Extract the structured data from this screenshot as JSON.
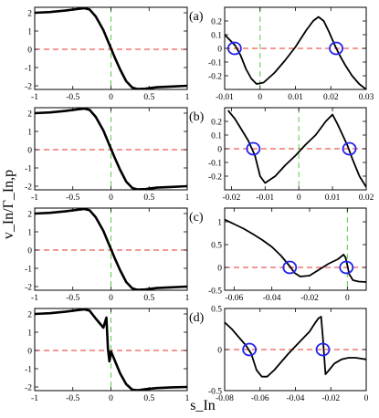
{
  "figure": {
    "ylabel": "v_In/Γ_In,p",
    "xlabel": "s_In"
  },
  "chart_data": [
    {
      "type": "line",
      "panel": "left",
      "row": 0,
      "label": "",
      "xlim": [
        -1,
        1
      ],
      "ylim": [
        -2.2,
        2.3
      ],
      "xticks": [
        -1,
        -0.5,
        0,
        0.5,
        1
      ],
      "xtick_labels": [
        "-1",
        "-0.5",
        "0",
        "0.5",
        "1"
      ],
      "yticks": [
        -2,
        -1,
        0,
        1,
        2
      ],
      "ytick_labels": [
        "-2",
        "-1",
        "0",
        "1",
        "2"
      ],
      "refs": {
        "hline": 0,
        "vline": 0
      },
      "series": [
        {
          "x": [
            -1,
            -0.8,
            -0.6,
            -0.45,
            -0.35,
            -0.28,
            -0.2,
            -0.1,
            -0.03,
            0,
            0.05,
            0.12,
            0.2,
            0.28,
            0.35,
            0.45,
            0.6,
            0.8,
            1
          ],
          "y": [
            2.0,
            2.04,
            2.12,
            2.2,
            2.25,
            2.18,
            1.8,
            1.05,
            0.35,
            0.05,
            -0.45,
            -1.1,
            -1.75,
            -2.1,
            -2.18,
            -2.16,
            -2.08,
            -2.04,
            -2.0
          ]
        }
      ],
      "markers": []
    },
    {
      "type": "line",
      "panel": "right",
      "row": 0,
      "label": "(a)",
      "xlim": [
        -0.01,
        0.03
      ],
      "ylim": [
        -0.3,
        0.3
      ],
      "xticks": [
        -0.01,
        0,
        0.01,
        0.02,
        0.03
      ],
      "xtick_labels": [
        "-0.01",
        "0",
        "0.01",
        "0.02",
        "0.03"
      ],
      "yticks": [
        -0.2,
        -0.1,
        0,
        0.1,
        0.2
      ],
      "ytick_labels": [
        "-0.2",
        "-0.1",
        "0",
        "0.1",
        "0.2"
      ],
      "refs": {
        "hline": 0,
        "vline": 0
      },
      "series": [
        {
          "x": [
            -0.01,
            -0.0085,
            -0.007,
            -0.0055,
            -0.004,
            -0.0025,
            -0.001,
            0.001,
            0.004,
            0.007,
            0.01,
            0.013,
            0.015,
            0.0165,
            0.018,
            0.0195,
            0.021,
            0.0225,
            0.024,
            0.026,
            0.028,
            0.03
          ],
          "y": [
            0.1,
            0.06,
            0.02,
            -0.05,
            -0.15,
            -0.22,
            -0.26,
            -0.25,
            -0.18,
            -0.09,
            0.01,
            0.13,
            0.2,
            0.23,
            0.2,
            0.12,
            0.03,
            -0.05,
            -0.12,
            -0.2,
            -0.26,
            -0.3
          ]
        }
      ],
      "markers": [
        {
          "x": -0.0072,
          "y": 0
        },
        {
          "x": 0.0215,
          "y": 0
        }
      ]
    },
    {
      "type": "line",
      "panel": "left",
      "row": 1,
      "label": "",
      "xlim": [
        -1,
        1
      ],
      "ylim": [
        -2.2,
        2.3
      ],
      "xticks": [
        -1,
        -0.5,
        0,
        0.5,
        1
      ],
      "xtick_labels": [
        "-1",
        "-0.5",
        "0",
        "0.5",
        "1"
      ],
      "yticks": [
        -2,
        -1,
        0,
        1,
        2
      ],
      "ytick_labels": [
        "-2",
        "-1",
        "0",
        "1",
        "2"
      ],
      "refs": {
        "hline": 0,
        "vline": 0
      },
      "series": [
        {
          "x": [
            -1,
            -0.8,
            -0.6,
            -0.45,
            -0.35,
            -0.28,
            -0.2,
            -0.1,
            -0.03,
            0,
            0.05,
            0.12,
            0.2,
            0.28,
            0.35,
            0.45,
            0.6,
            0.8,
            1
          ],
          "y": [
            2.0,
            2.04,
            2.12,
            2.2,
            2.25,
            2.18,
            1.8,
            1.05,
            0.35,
            0.05,
            -0.45,
            -1.1,
            -1.75,
            -2.1,
            -2.18,
            -2.16,
            -2.08,
            -2.04,
            -2.0
          ]
        }
      ],
      "markers": []
    },
    {
      "type": "line",
      "panel": "right",
      "row": 1,
      "label": "(b)",
      "xlim": [
        -0.022,
        0.02
      ],
      "ylim": [
        -0.3,
        0.3
      ],
      "xticks": [
        -0.02,
        -0.01,
        0,
        0.01,
        0.02
      ],
      "xtick_labels": [
        "-0.02",
        "-0.01",
        "0",
        "0.01",
        "0.02"
      ],
      "yticks": [
        -0.2,
        -0.1,
        0,
        0.1,
        0.2
      ],
      "ytick_labels": [
        "-0.2",
        "-0.1",
        "0",
        "0.1",
        "0.2"
      ],
      "refs": {
        "hline": 0,
        "vline": 0
      },
      "series": [
        {
          "x": [
            -0.021,
            -0.019,
            -0.017,
            -0.015,
            -0.013,
            -0.0115,
            -0.01,
            -0.007,
            -0.004,
            -0.001,
            0.002,
            0.005,
            0.008,
            0.01,
            0.0115,
            0.013,
            0.0145,
            0.016,
            0.018,
            0.02
          ],
          "y": [
            0.28,
            0.22,
            0.14,
            0.06,
            -0.05,
            -0.2,
            -0.25,
            -0.2,
            -0.12,
            -0.05,
            0.03,
            0.1,
            0.2,
            0.25,
            0.18,
            0.1,
            0.02,
            -0.08,
            -0.2,
            -0.28
          ]
        }
      ],
      "markers": [
        {
          "x": -0.0135,
          "y": 0
        },
        {
          "x": 0.015,
          "y": 0
        }
      ]
    },
    {
      "type": "line",
      "panel": "left",
      "row": 2,
      "label": "",
      "xlim": [
        -1,
        1
      ],
      "ylim": [
        -2.2,
        2.3
      ],
      "xticks": [
        -1,
        -0.5,
        0,
        0.5,
        1
      ],
      "xtick_labels": [
        "-1",
        "-0.5",
        "0",
        "0.5",
        "1"
      ],
      "yticks": [
        -2,
        -1,
        0,
        1,
        2
      ],
      "ytick_labels": [
        "-2",
        "-1",
        "0",
        "1",
        "2"
      ],
      "refs": {
        "hline": 0,
        "vline": 0
      },
      "series": [
        {
          "x": [
            -1,
            -0.8,
            -0.6,
            -0.45,
            -0.35,
            -0.28,
            -0.2,
            -0.1,
            -0.03,
            0,
            0.05,
            0.12,
            0.2,
            0.28,
            0.35,
            0.45,
            0.6,
            0.8,
            1
          ],
          "y": [
            2.0,
            2.04,
            2.12,
            2.2,
            2.25,
            2.18,
            1.8,
            1.05,
            0.35,
            0.05,
            -0.45,
            -1.1,
            -1.75,
            -2.1,
            -2.18,
            -2.16,
            -2.08,
            -2.04,
            -2.0
          ]
        }
      ],
      "markers": []
    },
    {
      "type": "line",
      "panel": "right",
      "row": 2,
      "label": "(c)",
      "xlim": [
        -0.065,
        0.01
      ],
      "ylim": [
        -0.5,
        1.3
      ],
      "xticks": [
        -0.06,
        -0.04,
        -0.02,
        0
      ],
      "xtick_labels": [
        "-0.06",
        "-0.04",
        "-0.02",
        "0"
      ],
      "yticks": [
        -0.5,
        0,
        0.5,
        1
      ],
      "ytick_labels": [
        "-0.5",
        "0",
        "0.5",
        "1"
      ],
      "refs": {
        "hline": 0,
        "vline": 0
      },
      "series": [
        {
          "x": [
            -0.065,
            -0.06,
            -0.055,
            -0.05,
            -0.045,
            -0.04,
            -0.035,
            -0.032,
            -0.03,
            -0.028,
            -0.025,
            -0.02,
            -0.015,
            -0.01,
            -0.005,
            -0.002,
            -0.001,
            0,
            0.001,
            0.003,
            0.006,
            0.01
          ],
          "y": [
            1.05,
            0.95,
            0.85,
            0.73,
            0.6,
            0.45,
            0.25,
            0.1,
            0.0,
            -0.12,
            -0.2,
            -0.18,
            -0.05,
            0.08,
            0.18,
            0.28,
            0.22,
            0.05,
            -0.15,
            -0.28,
            -0.31,
            -0.32
          ]
        }
      ],
      "markers": [
        {
          "x": -0.0305,
          "y": 0
        },
        {
          "x": -0.0005,
          "y": 0
        }
      ]
    },
    {
      "type": "line",
      "panel": "left",
      "row": 3,
      "label": "",
      "xlim": [
        -1,
        1
      ],
      "ylim": [
        -2.2,
        2.3
      ],
      "xticks": [
        -1,
        -0.5,
        0,
        0.5,
        1
      ],
      "xtick_labels": [
        "-1",
        "-0.5",
        "0",
        "0.5",
        "1"
      ],
      "yticks": [
        -2,
        -1,
        0,
        1,
        2
      ],
      "ytick_labels": [
        "-2",
        "-1",
        "0",
        "1",
        "2"
      ],
      "refs": {
        "hline": 0,
        "vline": 0
      },
      "series": [
        {
          "x": [
            -1,
            -0.8,
            -0.6,
            -0.45,
            -0.35,
            -0.28,
            -0.2,
            -0.15,
            -0.1,
            -0.06,
            -0.04,
            -0.02,
            0,
            0.05,
            0.12,
            0.2,
            0.28,
            0.35,
            0.45,
            0.6,
            0.8,
            1
          ],
          "y": [
            2.0,
            2.04,
            2.12,
            2.2,
            2.25,
            2.18,
            1.75,
            1.5,
            1.25,
            1.8,
            0.1,
            -0.6,
            -0.05,
            -0.55,
            -1.25,
            -1.85,
            -2.15,
            -2.18,
            -2.12,
            -2.06,
            -2.02,
            -2.0
          ]
        }
      ],
      "markers": []
    },
    {
      "type": "line",
      "panel": "right",
      "row": 3,
      "label": "(d)",
      "xlim": [
        -0.08,
        0
      ],
      "ylim": [
        -0.5,
        0.5
      ],
      "xticks": [
        -0.08,
        -0.06,
        -0.04,
        -0.02,
        0
      ],
      "xtick_labels": [
        "-0.08",
        "-0.06",
        "-0.04",
        "-0.02",
        "0"
      ],
      "yticks": [
        -0.5,
        0,
        0.5
      ],
      "ytick_labels": [
        "-0.5",
        "0",
        "0.5"
      ],
      "refs": {
        "hline": 0,
        "vline": 0
      },
      "series": [
        {
          "x": [
            -0.08,
            -0.076,
            -0.072,
            -0.068,
            -0.065,
            -0.062,
            -0.059,
            -0.056,
            -0.052,
            -0.048,
            -0.044,
            -0.04,
            -0.036,
            -0.032,
            -0.029,
            -0.027,
            -0.0255,
            -0.0245,
            -0.023,
            -0.021,
            -0.018,
            -0.014,
            -0.01,
            -0.006,
            -0.003,
            0
          ],
          "y": [
            0.33,
            0.25,
            0.15,
            0.05,
            -0.05,
            -0.25,
            -0.33,
            -0.33,
            -0.25,
            -0.15,
            -0.05,
            0.04,
            0.13,
            0.22,
            0.32,
            0.38,
            0.4,
            0.15,
            -0.3,
            -0.25,
            -0.17,
            -0.12,
            -0.1,
            -0.1,
            -0.11,
            -0.12
          ]
        }
      ],
      "markers": [
        {
          "x": -0.066,
          "y": 0
        },
        {
          "x": -0.0245,
          "y": 0
        }
      ]
    }
  ]
}
